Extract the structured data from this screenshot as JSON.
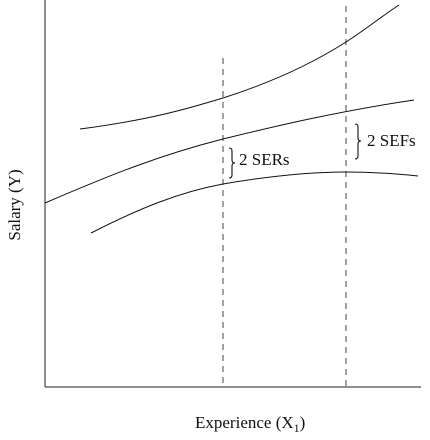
{
  "axes": {
    "x_label": "Experience (X",
    "x_label_sub": "1",
    "x_label_close": ")",
    "y_label": "Salary (Y)"
  },
  "annotations": {
    "ser_label": "2 SERs",
    "sef_label": "2 SEFs"
  },
  "colors": {
    "line": "#111111",
    "dashed": "#444444",
    "background": "#ffffff"
  }
}
